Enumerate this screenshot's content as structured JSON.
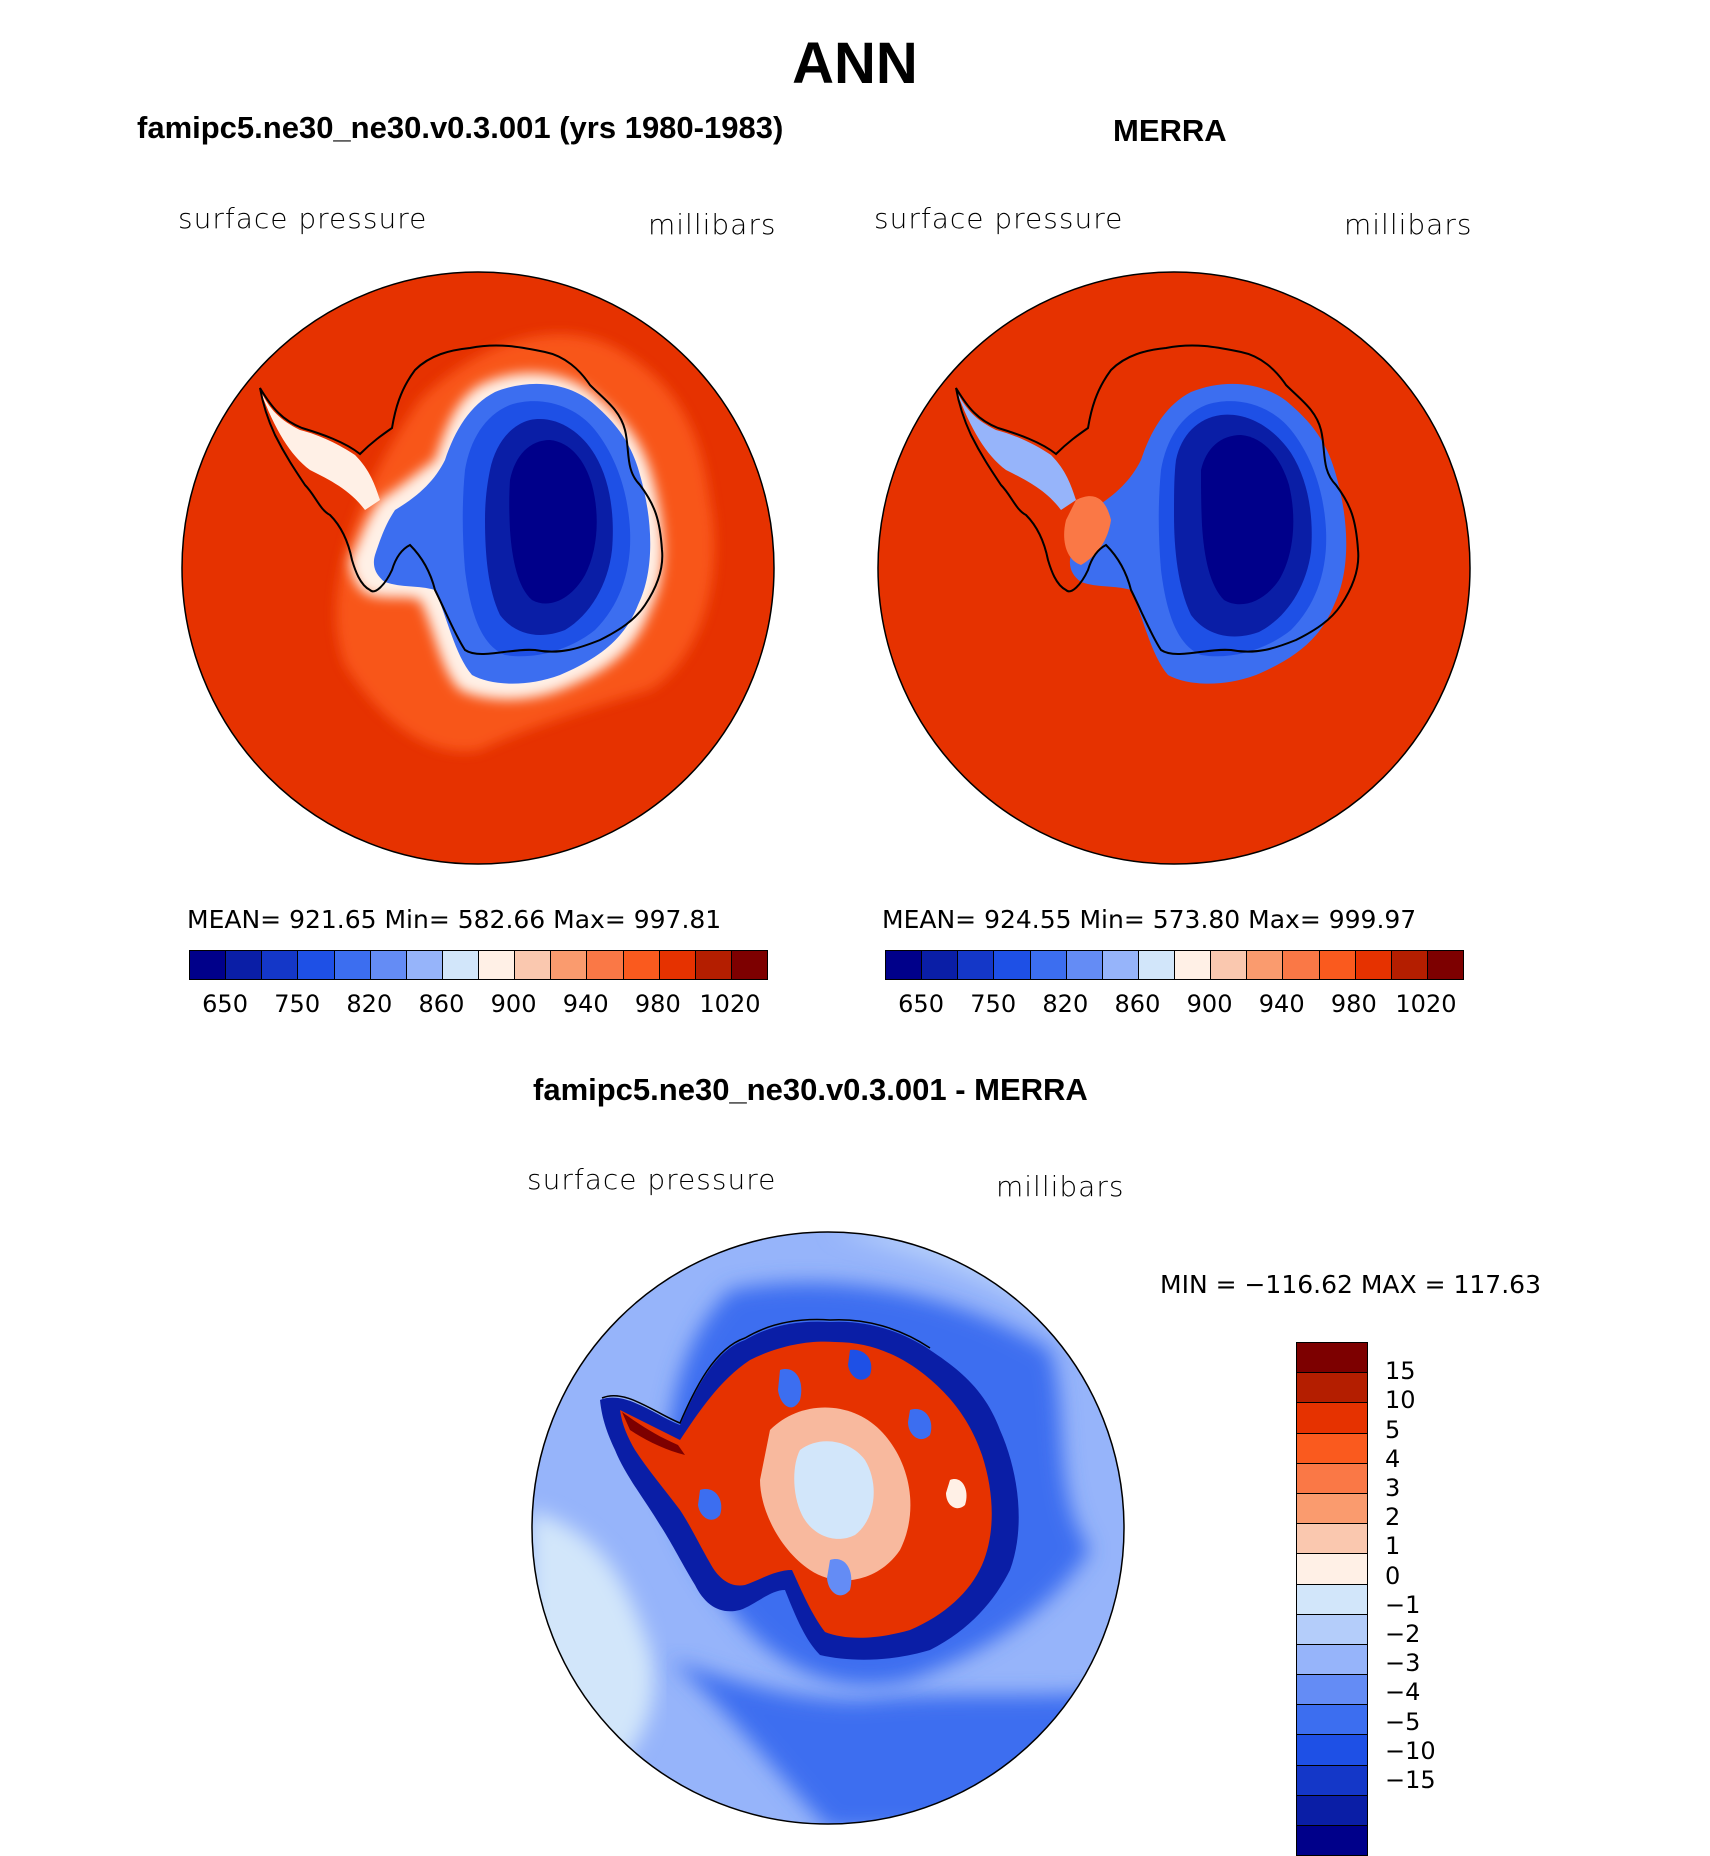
{
  "title": "ANN",
  "panels": [
    {
      "id": "model",
      "title": "famipc5.ne30_ne30.v0.3.001 (yrs 1980-1983)",
      "variable": "surface pressure",
      "units": "millibars",
      "stats": "MEAN= 921.65   Min= 582.66   Max= 997.81"
    },
    {
      "id": "obs",
      "title": "MERRA",
      "variable": "surface pressure",
      "units": "millibars",
      "stats": "MEAN= 924.55   Min= 573.80   Max= 999.97"
    },
    {
      "id": "diff",
      "title": "famipc5.ne30_ne30.v0.3.001 - MERRA",
      "variable": "surface pressure",
      "units": "millibars",
      "stats": "MIN = −116.62 MAX = 117.63"
    }
  ],
  "colorbar_main": {
    "colors": [
      "#00008a",
      "#0a1ea6",
      "#1437c8",
      "#1e50e6",
      "#3c6ef0",
      "#648cf5",
      "#96b4fa",
      "#d2e6fa",
      "#fff0e6",
      "#fac8af",
      "#fa9b6e",
      "#fa7846",
      "#fa5a1e",
      "#e63200",
      "#b41e00",
      "#7d0000"
    ],
    "labels": [
      "650",
      "750",
      "820",
      "860",
      "900",
      "940",
      "980",
      "1020"
    ]
  },
  "colorbar_diff": {
    "colors": [
      "#7d0000",
      "#b41e00",
      "#e63200",
      "#fa5a1e",
      "#fa7846",
      "#fa9b6e",
      "#fac8af",
      "#fff0e6",
      "#d2e6fa",
      "#b4cdfa",
      "#96b4fa",
      "#648cf5",
      "#3c6ef0",
      "#1e50e6",
      "#1437c8",
      "#0a1ea6",
      "#00008a"
    ],
    "labels": [
      "15",
      "10",
      "5",
      "4",
      "3",
      "2",
      "1",
      "0",
      "−1",
      "−2",
      "−3",
      "−4",
      "−5",
      "−10",
      "−15"
    ]
  }
}
